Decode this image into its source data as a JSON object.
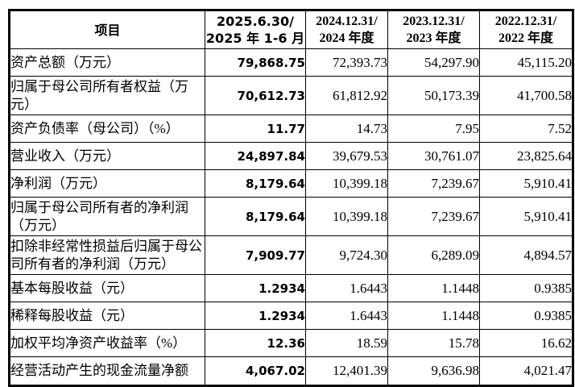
{
  "table": {
    "header": {
      "item": "项目",
      "col_2025_line1": "2025.6.30/",
      "col_2025_line2": "2025 年 1-6 月",
      "col_2024_line1": "2024.12.31/",
      "col_2024_line2": "2024 年度",
      "col_2023_line1": "2023.12.31/",
      "col_2023_line2": "2023 年度",
      "col_2022_line1": "2022.12.31/",
      "col_2022_line2": "2022 年度"
    },
    "rows": [
      {
        "item": "资产总额（万元）",
        "values": [
          "79,868.75",
          "72,393.73",
          "54,297.90",
          "45,115.20"
        ]
      },
      {
        "item": "归属于母公司所有者权益（万元）",
        "values": [
          "70,612.73",
          "61,812.92",
          "50,173.39",
          "41,700.58"
        ]
      },
      {
        "item": "资产负债率（母公司）（%）",
        "values": [
          "11.77",
          "14.73",
          "7.95",
          "7.52"
        ]
      },
      {
        "item": "营业收入（万元）",
        "values": [
          "24,897.84",
          "39,679.53",
          "30,761.07",
          "23,825.64"
        ]
      },
      {
        "item": "净利润（万元）",
        "values": [
          "8,179.64",
          "10,399.18",
          "7,239.67",
          "5,910.41"
        ]
      },
      {
        "item": "归属于母公司所有者的净利润（万元）",
        "values": [
          "8,179.64",
          "10,399.18",
          "7,239.67",
          "5,910.41"
        ]
      },
      {
        "item": "扣除非经常性损益后归属于母公司所有者的净利润（万元）",
        "values": [
          "7,909.77",
          "9,724.30",
          "6,289.09",
          "4,894.57"
        ]
      },
      {
        "item": "基本每股收益（元）",
        "values": [
          "1.2934",
          "1.6443",
          "1.1448",
          "0.9385"
        ]
      },
      {
        "item": "稀释每股收益（元）",
        "values": [
          "1.2934",
          "1.6443",
          "1.1448",
          "0.9385"
        ]
      },
      {
        "item": "加权平均净资产收益率（%）",
        "values": [
          "12.36",
          "18.59",
          "15.78",
          "16.62"
        ]
      },
      {
        "item": "经营活动产生的现金流量净额",
        "values": [
          "4,067.02",
          "12,401.39",
          "9,636.98",
          "4,021.47"
        ]
      }
    ]
  }
}
